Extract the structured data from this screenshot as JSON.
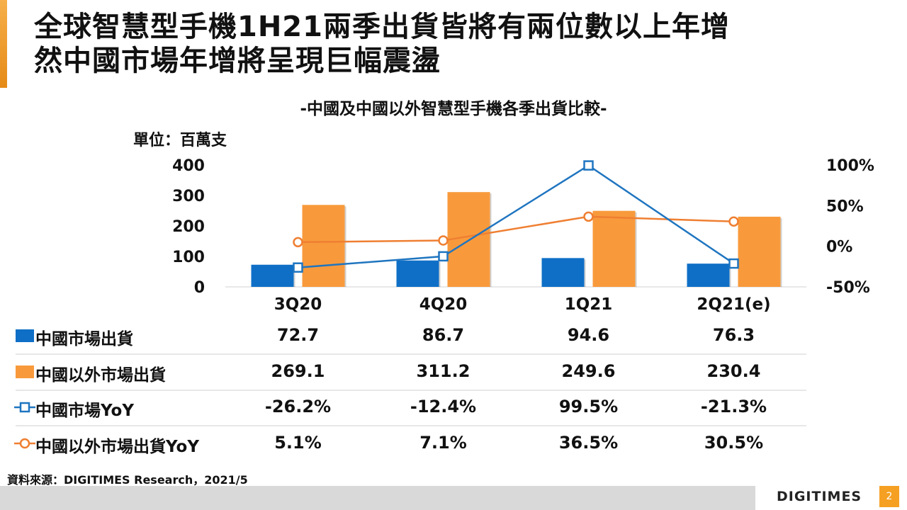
{
  "title": {
    "line1": "全球智慧型手機1H21兩季出貨皆將有兩位數以上年增",
    "line2": "然中國市場年增將呈現巨幅震盪"
  },
  "subtitle": "-中國及中國以外智慧型手機各季出貨比較-",
  "unit_label": "單位：百萬支",
  "colors": {
    "accent": "#f39a2b",
    "china": "#0f6fc6",
    "nonchina": "#f89a3c",
    "china_line": "#1f75c0",
    "nonchina_line": "#ef7f32"
  },
  "chart_data": {
    "type": "bar+line",
    "categories": [
      "3Q20",
      "4Q20",
      "1Q21",
      "2Q21(e)"
    ],
    "left_axis": {
      "ticks": [
        "400",
        "300",
        "200",
        "100",
        "0"
      ],
      "ylim": [
        0,
        400
      ]
    },
    "right_axis": {
      "ticks": [
        "100%",
        "50%",
        "0%",
        "-50%"
      ],
      "ylim": [
        -50,
        100
      ]
    },
    "series": [
      {
        "name": "中國市場出貨",
        "type": "bar",
        "axis": "left",
        "values": [
          72.7,
          86.7,
          94.6,
          76.3
        ],
        "labels": [
          "72.7",
          "86.7",
          "94.6",
          "76.3"
        ]
      },
      {
        "name": "中國以外市場出貨",
        "type": "bar",
        "axis": "left",
        "values": [
          269.1,
          311.2,
          249.6,
          230.4
        ],
        "labels": [
          "269.1",
          "311.2",
          "249.6",
          "230.4"
        ]
      },
      {
        "name": "中國市場YoY",
        "type": "line",
        "marker": "square",
        "axis": "right",
        "values": [
          -26.2,
          -12.4,
          99.5,
          -21.3
        ],
        "labels": [
          "-26.2%",
          "-12.4%",
          "99.5%",
          "-21.3%"
        ]
      },
      {
        "name": "中國以外市場出貨YoY",
        "type": "line",
        "marker": "circle",
        "axis": "right",
        "values": [
          5.1,
          7.1,
          36.5,
          30.5
        ],
        "labels": [
          "5.1%",
          "7.1%",
          "36.5%",
          "30.5%"
        ]
      }
    ]
  },
  "source": "資料來源：DIGITIMES Research，2021/5",
  "footer": {
    "logo": "DIGITIMES",
    "page": "2"
  }
}
